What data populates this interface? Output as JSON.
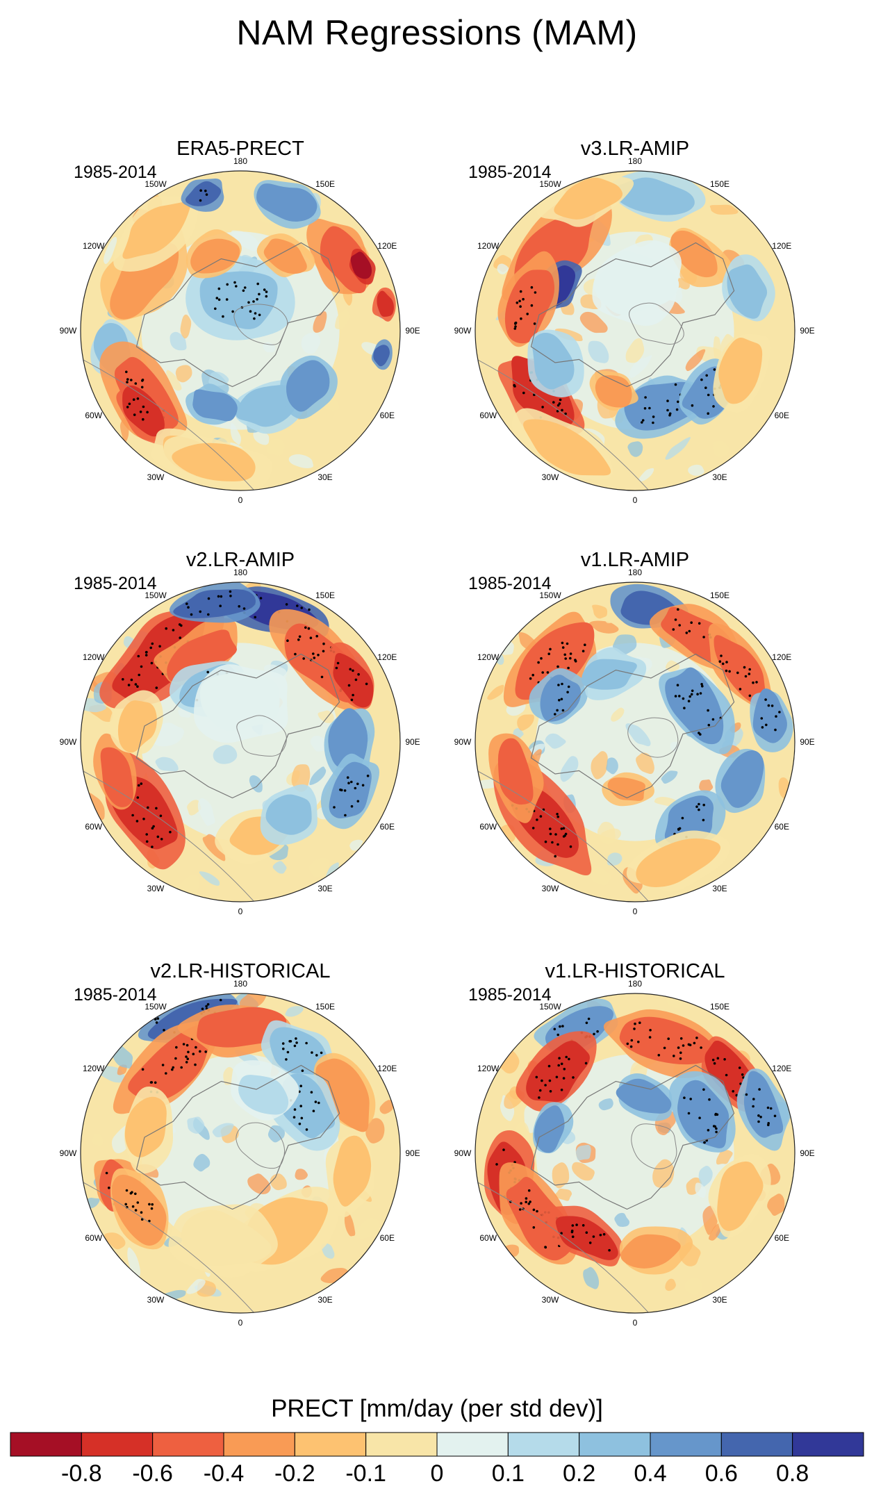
{
  "title": "NAM Regressions (MAM)",
  "period_label": "1985-2014",
  "longitude_labels": [
    "180",
    "150E",
    "120E",
    "90E",
    "60E",
    "30E",
    "0",
    "30W",
    "60W",
    "90W",
    "120W",
    "150W"
  ],
  "panels": [
    {
      "name": "ERA5-PRECT"
    },
    {
      "name": "v3.LR-AMIP"
    },
    {
      "name": "v2.LR-AMIP"
    },
    {
      "name": "v1.LR-AMIP"
    },
    {
      "name": "v2.LR-HISTORICAL"
    },
    {
      "name": "v1.LR-HISTORICAL"
    }
  ],
  "colorbar": {
    "title": "PRECT [mm/day (per std dev)]",
    "tick_labels": [
      "-0.8",
      "-0.6",
      "-0.4",
      "-0.2",
      "-0.1",
      "0",
      "0.1",
      "0.2",
      "0.4",
      "0.6",
      "0.8"
    ],
    "colors": [
      "#a50f25",
      "#d63027",
      "#ee6040",
      "#f99b55",
      "#fdc271",
      "#f8e5a8",
      "#e3f2ef",
      "#b5dbea",
      "#8ec1df",
      "#6696cb",
      "#4466ae",
      "#313898"
    ]
  }
}
